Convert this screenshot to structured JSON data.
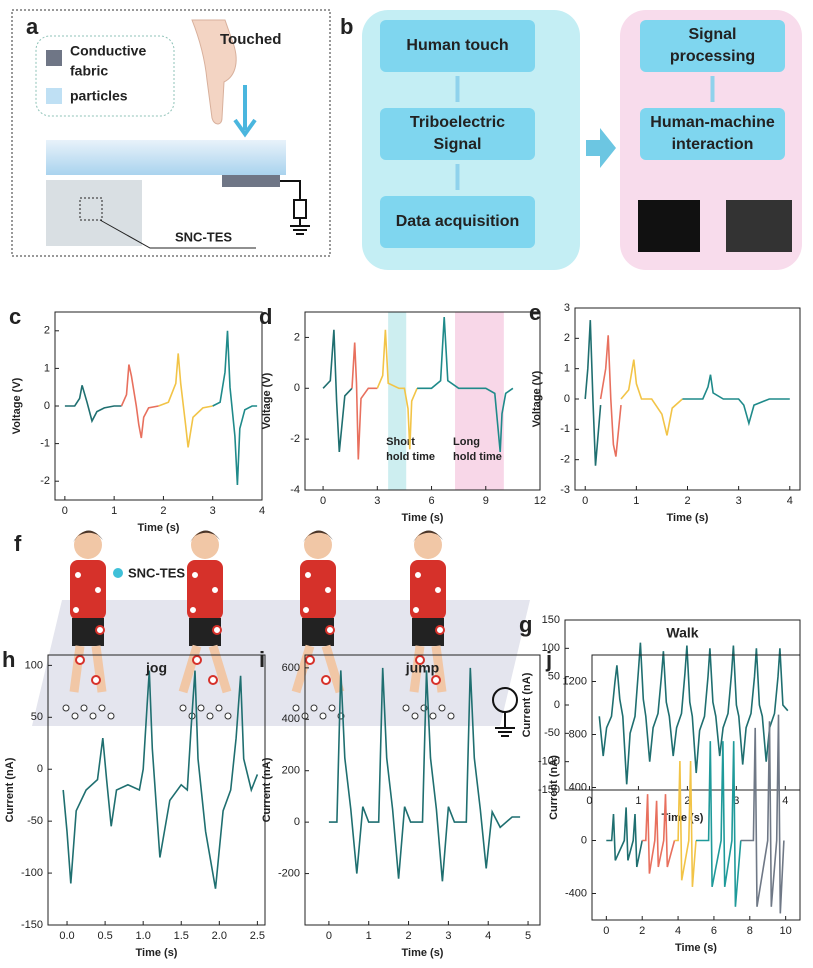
{
  "diagram_a": {
    "label": "a",
    "legend": [
      {
        "lines": [
          "Conductive",
          "fabric"
        ]
      },
      {
        "lines": [
          "particles"
        ]
      }
    ],
    "action": "Touched",
    "device": "SNC-TES"
  },
  "diagram_b": {
    "label": "b",
    "left_boxes": [
      {
        "lines": [
          "Human touch"
        ]
      },
      {
        "lines": [
          "Triboelectric",
          "Signal"
        ]
      },
      {
        "lines": [
          "Data acquisition"
        ]
      }
    ],
    "right_boxes": [
      {
        "lines": [
          "Signal",
          "processing"
        ]
      },
      {
        "lines": [
          "Human-machine",
          "interaction"
        ]
      }
    ]
  },
  "diagram_f": {
    "label": "f",
    "legend": "SNC-TES"
  },
  "chart_data": [
    {
      "type": "line",
      "label": "c",
      "xlabel": "Time (s)",
      "ylabel": "Voltage (V)",
      "xlim": [
        -0.2,
        4
      ],
      "ylim": [
        -2.5,
        2.5
      ],
      "xticks": [
        0,
        1,
        2,
        3,
        4
      ],
      "yticks": [
        -2,
        -1,
        0,
        1,
        2
      ],
      "series": [
        {
          "color": "#1f6f70",
          "x": [
            0,
            0.2,
            0.3,
            0.35,
            0.45,
            0.55,
            0.65,
            0.8,
            1.0,
            1.15
          ],
          "values": [
            0,
            0,
            0.2,
            0.55,
            0.1,
            -0.4,
            -0.15,
            -0.05,
            0,
            0
          ]
        },
        {
          "color": "#e8705e",
          "x": [
            1.15,
            1.25,
            1.3,
            1.35,
            1.45,
            1.5,
            1.55,
            1.6,
            1.7,
            1.9
          ],
          "values": [
            0,
            0.3,
            1.1,
            0.8,
            0,
            -0.5,
            -0.85,
            -0.3,
            -0.05,
            0
          ]
        },
        {
          "color": "#f2c447",
          "x": [
            1.9,
            2.1,
            2.25,
            2.3,
            2.35,
            2.45,
            2.5,
            2.6,
            2.8,
            3.0
          ],
          "values": [
            0,
            0.1,
            0.6,
            1.4,
            0.6,
            -0.5,
            -1.1,
            -0.3,
            -0.05,
            0
          ]
        },
        {
          "color": "#1f8a8a",
          "x": [
            3.0,
            3.15,
            3.25,
            3.3,
            3.35,
            3.45,
            3.5,
            3.55,
            3.65,
            3.8,
            3.9
          ],
          "values": [
            0,
            0.1,
            0.9,
            2.0,
            0.5,
            -0.8,
            -2.1,
            -0.6,
            -0.1,
            0,
            0
          ]
        }
      ]
    },
    {
      "type": "line",
      "label": "d",
      "xlabel": "Time (s)",
      "ylabel": "Voltage (V)",
      "xlim": [
        -1,
        12
      ],
      "ylim": [
        -4,
        3
      ],
      "xticks": [
        0,
        3,
        6,
        9,
        12
      ],
      "yticks": [
        -4,
        -2,
        0,
        2
      ],
      "annotations": [
        {
          "lines": [
            "Short",
            "hold time"
          ],
          "x": [
            3.6,
            4.6
          ],
          "color": "#cdeef0"
        },
        {
          "lines": [
            "Long",
            "hold time"
          ],
          "x": [
            7.3,
            10.0
          ],
          "color": "#f8d7e8"
        }
      ],
      "series": [
        {
          "color": "#1f6f70",
          "x": [
            0,
            0.4,
            0.6,
            0.75,
            0.9,
            1.2,
            1.6
          ],
          "values": [
            0,
            0.3,
            2.3,
            -0.5,
            -2.5,
            -0.3,
            0
          ]
        },
        {
          "color": "#e8705e",
          "x": [
            1.6,
            1.75,
            1.85,
            1.95,
            2.1,
            2.5,
            3.0
          ],
          "values": [
            0,
            1.8,
            0.2,
            -2.8,
            -0.4,
            0,
            0
          ]
        },
        {
          "color": "#f2c447",
          "x": [
            3.0,
            3.3,
            3.45,
            3.6,
            4.2,
            4.5,
            4.7,
            4.8,
            4.9,
            5.2
          ],
          "values": [
            0,
            0.5,
            2.3,
            0.2,
            0,
            0,
            -0.8,
            -2.4,
            -0.5,
            0
          ]
        },
        {
          "color": "#1f8a8a",
          "x": [
            5.2,
            6.0,
            6.5,
            6.7,
            6.9,
            7.5,
            9.0,
            9.5,
            9.8,
            9.9,
            10.1,
            10.5
          ],
          "values": [
            0,
            0,
            0.3,
            2.8,
            0.3,
            0,
            0,
            -0.2,
            -2.5,
            -1.0,
            -0.2,
            0
          ]
        }
      ]
    },
    {
      "type": "line",
      "label": "e",
      "xlabel": "Time (s)",
      "ylabel": "Voltage (V)",
      "xlim": [
        -0.2,
        4.2
      ],
      "ylim": [
        -3,
        3
      ],
      "xticks": [
        0,
        1,
        2,
        3,
        4
      ],
      "yticks": [
        -3,
        -2,
        -1,
        0,
        1,
        2,
        3
      ],
      "series": [
        {
          "color": "#1f6f70",
          "x": [
            0,
            0.05,
            0.1,
            0.15,
            0.2,
            0.3
          ],
          "values": [
            0,
            1.0,
            2.6,
            0,
            -2.2,
            -0.2
          ]
        },
        {
          "color": "#e8705e",
          "x": [
            0.3,
            0.4,
            0.45,
            0.5,
            0.55,
            0.6,
            0.7
          ],
          "values": [
            0,
            1.0,
            2.1,
            0,
            -1.5,
            -1.9,
            -0.2
          ]
        },
        {
          "color": "#f2c447",
          "x": [
            0.7,
            0.85,
            0.95,
            1.0,
            1.1,
            1.3,
            1.5,
            1.6,
            1.7,
            1.9
          ],
          "values": [
            0,
            0.3,
            1.3,
            0.5,
            0,
            0,
            -0.5,
            -1.2,
            -0.3,
            0
          ]
        },
        {
          "color": "#1f8a8a",
          "x": [
            1.9,
            2.3,
            2.4,
            2.45,
            2.5,
            2.7,
            3.0,
            3.1,
            3.2,
            3.3,
            3.6,
            4.0
          ],
          "values": [
            0,
            0,
            0.4,
            0.8,
            0.2,
            0,
            0,
            -0.2,
            -0.8,
            -0.2,
            0,
            0
          ]
        }
      ]
    },
    {
      "type": "line",
      "label": "g",
      "title": "Walk",
      "xlabel": "Time (s)",
      "ylabel": "Current (nA)",
      "xlim": [
        -0.5,
        4.3
      ],
      "ylim": [
        -150,
        150
      ],
      "xticks": [
        0,
        1,
        2,
        3,
        4
      ],
      "yticks": [
        -150,
        -100,
        -50,
        0,
        50,
        100,
        150
      ],
      "series": [
        {
          "color": "#1f6f70",
          "x": [
            0.2,
            0.28,
            0.35,
            0.45,
            0.52,
            0.56,
            0.62,
            0.68,
            0.76,
            0.83,
            0.93,
            1.0,
            1.04,
            1.1,
            1.15,
            1.23,
            1.3,
            1.4,
            1.47,
            1.51,
            1.57,
            1.63,
            1.71,
            1.78,
            1.88,
            1.95,
            1.99,
            2.05,
            2.1,
            2.18,
            2.25,
            2.35,
            2.42,
            2.46,
            2.52,
            2.58,
            2.66,
            2.73,
            2.83,
            2.9,
            2.94,
            3.0,
            3.05,
            3.13,
            3.2,
            3.3,
            3.37,
            3.41,
            3.47,
            3.53,
            3.61,
            3.68,
            3.78,
            3.85,
            3.89,
            3.95,
            4.05
          ],
          "values": [
            -20,
            -90,
            -40,
            -20,
            40,
            70,
            10,
            -20,
            -140,
            -50,
            -20,
            60,
            110,
            10,
            -20,
            -100,
            -40,
            -15,
            50,
            95,
            5,
            -20,
            -90,
            -40,
            -15,
            55,
            105,
            5,
            -20,
            -120,
            -45,
            -20,
            50,
            100,
            5,
            -20,
            -90,
            -40,
            -15,
            55,
            105,
            0,
            -20,
            -105,
            -40,
            -15,
            50,
            100,
            0,
            -20,
            -100,
            -40,
            -15,
            50,
            100,
            0,
            -10
          ]
        }
      ]
    },
    {
      "type": "line",
      "label": "h",
      "title": "jog",
      "xlabel": "Time (s)",
      "ylabel": "Current (nA)",
      "xlim": [
        -0.25,
        2.6
      ],
      "ylim": [
        -150,
        110
      ],
      "xticks": [
        {
          "value": 0,
          "label": "0.0"
        },
        0.5,
        {
          "value": 1,
          "label": "1.0"
        },
        1.5,
        {
          "value": 2,
          "label": "2.0"
        },
        2.5
      ],
      "yticks": [
        -150,
        -100,
        -50,
        0,
        50,
        100
      ],
      "series": [
        {
          "color": "#1f6f70",
          "x": [
            -0.05,
            0.0,
            0.05,
            0.12,
            0.25,
            0.4,
            0.47,
            0.52,
            0.58,
            0.65,
            0.8,
            0.95,
            1.0,
            1.05,
            1.08,
            1.12,
            1.22,
            1.35,
            1.5,
            1.58,
            1.63,
            1.68,
            1.72,
            1.82,
            1.95,
            2.05,
            2.15,
            2.22,
            2.28,
            2.32,
            2.42,
            2.5
          ],
          "values": [
            -20,
            -60,
            -110,
            -40,
            -20,
            -10,
            30,
            -10,
            -55,
            -20,
            -15,
            -20,
            0,
            60,
            95,
            20,
            -85,
            -30,
            -15,
            -20,
            40,
            95,
            10,
            -60,
            -115,
            -40,
            -20,
            30,
            90,
            10,
            -20,
            -5
          ]
        }
      ]
    },
    {
      "type": "line",
      "label": "i",
      "title": "jump",
      "xlabel": "Time (s)",
      "ylabel": "Current (nA)",
      "xlim": [
        -0.6,
        5.3
      ],
      "ylim": [
        -400,
        650
      ],
      "xticks": [
        0,
        1,
        2,
        3,
        4,
        5
      ],
      "yticks": [
        -200,
        0,
        200,
        400,
        600
      ],
      "series": [
        {
          "color": "#1f6f70",
          "x": [
            0.0,
            0.2,
            0.3,
            0.4,
            0.55,
            0.7,
            0.85,
            1.0,
            1.25,
            1.35,
            1.45,
            1.6,
            1.75,
            1.9,
            2.05,
            2.35,
            2.45,
            2.55,
            2.7,
            2.85,
            3.0,
            3.15,
            3.45,
            3.55,
            3.65,
            3.8,
            3.95,
            4.1,
            4.3,
            4.6,
            4.8
          ],
          "values": [
            0,
            0,
            590,
            250,
            50,
            -200,
            60,
            0,
            0,
            600,
            250,
            50,
            -220,
            60,
            0,
            0,
            590,
            250,
            50,
            -230,
            60,
            0,
            0,
            600,
            250,
            50,
            -180,
            40,
            -20,
            20,
            20
          ]
        }
      ]
    },
    {
      "type": "line",
      "label": "j",
      "xlabel": "Time (s)",
      "ylabel": "Current (nA)",
      "xlim": [
        -0.8,
        10.8
      ],
      "ylim": [
        -600,
        1400
      ],
      "xticks": [
        0,
        2,
        4,
        6,
        8,
        10
      ],
      "yticks": [
        -400,
        0,
        400,
        800,
        1200
      ],
      "series": [
        {
          "color": "#1f6f70",
          "x": [
            0,
            0.3,
            0.4,
            0.5,
            1.0,
            1.1,
            1.2,
            1.5,
            1.6,
            1.7,
            2.0
          ],
          "values": [
            0,
            0,
            200,
            -150,
            0,
            250,
            -150,
            0,
            200,
            -200,
            0
          ]
        },
        {
          "color": "#e8705e",
          "x": [
            2.0,
            2.2,
            2.3,
            2.4,
            2.7,
            2.8,
            2.9,
            3.2,
            3.3,
            3.4,
            3.8
          ],
          "values": [
            0,
            0,
            350,
            -250,
            0,
            300,
            -200,
            0,
            350,
            -200,
            0
          ]
        },
        {
          "color": "#f2c447",
          "x": [
            3.8,
            4.0,
            4.1,
            4.2,
            4.6,
            4.7,
            4.8,
            5.0
          ],
          "values": [
            0,
            0,
            600,
            -300,
            0,
            600,
            -350,
            0
          ]
        },
        {
          "color": "#1f9a9a",
          "x": [
            5.0,
            5.7,
            5.8,
            5.9,
            6.4,
            6.5,
            6.6,
            7.0,
            7.1,
            7.2,
            7.5
          ],
          "values": [
            0,
            0,
            750,
            -350,
            0,
            750,
            -350,
            0,
            750,
            -500,
            0
          ]
        },
        {
          "color": "#6f7886",
          "x": [
            7.5,
            8.2,
            8.3,
            8.4,
            9.0,
            9.1,
            9.2,
            9.5,
            9.6,
            9.7,
            9.9
          ],
          "values": [
            0,
            0,
            850,
            -500,
            0,
            900,
            -500,
            0,
            950,
            -550,
            0
          ]
        }
      ]
    }
  ]
}
